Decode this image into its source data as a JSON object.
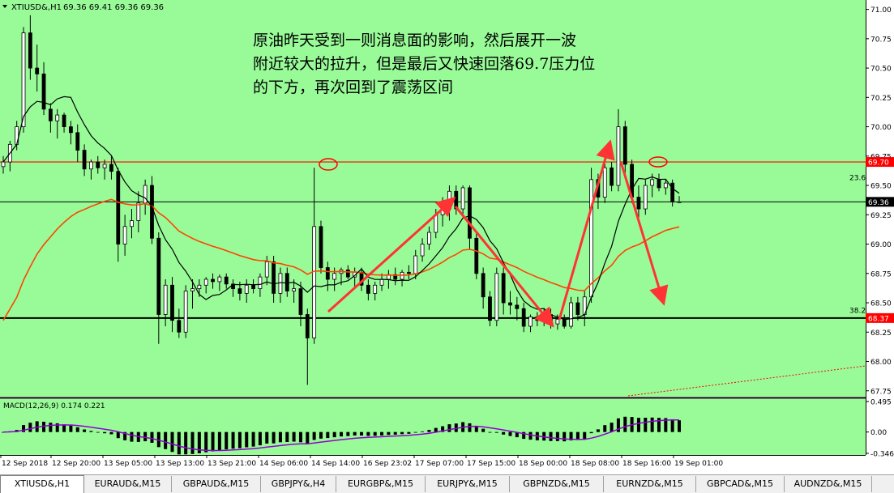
{
  "header": {
    "symbol_label": "XTIUSD&,H1",
    "ohlc_label": "69.36 69.41 69.36 69.36"
  },
  "annotation": {
    "lines": [
      "原油昨天受到一则消息面的影响，然后展开一波",
      "附近较大的拉升，但是最后又快速回落69.7压力位",
      "的下方，再次回到了震荡区间"
    ]
  },
  "colors": {
    "background": "#98fb98",
    "axis_panel": "#ffffff",
    "bull_candle": "#ffffff",
    "bear_candle": "#000000",
    "ma_fast": "#000000",
    "ma_slow": "#ff4500",
    "resistance": "#ff0000",
    "arrow": "#ff3333",
    "macd_signal": "#9400d3"
  },
  "chart_data": {
    "type": "candlestick",
    "symbol": "XTIUSD&",
    "timeframe": "H1",
    "ylim": [
      67.7,
      71.08
    ],
    "y_ticks": [
      "71.00",
      "70.75",
      "70.50",
      "70.25",
      "70.00",
      "69.75",
      "69.50",
      "69.25",
      "69.00",
      "68.75",
      "68.50",
      "68.25",
      "68.00",
      "67.75"
    ],
    "x_tick_labels": [
      "12 Sep 2018",
      "12 Sep 20:00",
      "13 Sep 05:00",
      "13 Sep 13:00",
      "13 Sep 21:00",
      "14 Sep 06:00",
      "14 Sep 14:00",
      "16 Sep 23:02",
      "17 Sep 07:00",
      "17 Sep 15:00",
      "18 Sep 00:00",
      "18 Sep 08:00",
      "18 Sep 16:00",
      "19 Sep 01:00"
    ],
    "horizontal_levels": [
      {
        "price": 69.7,
        "label": "69.70",
        "style": "resistance"
      },
      {
        "price": 69.36,
        "label": "69.36",
        "style": "current"
      },
      {
        "price": 68.37,
        "label": "68.37",
        "style": "support"
      }
    ],
    "fib_labels": [
      {
        "price": 69.53,
        "label": "23.6"
      },
      {
        "price": 68.4,
        "label": "38.2"
      }
    ],
    "candles": [
      {
        "o": 69.66,
        "h": 69.75,
        "l": 69.6,
        "c": 69.7
      },
      {
        "o": 69.7,
        "h": 69.88,
        "l": 69.62,
        "c": 69.85
      },
      {
        "o": 69.85,
        "h": 70.05,
        "l": 69.8,
        "c": 70.0
      },
      {
        "o": 70.0,
        "h": 70.85,
        "l": 69.95,
        "c": 70.8
      },
      {
        "o": 70.8,
        "h": 70.95,
        "l": 70.4,
        "c": 70.5
      },
      {
        "o": 70.5,
        "h": 70.7,
        "l": 70.3,
        "c": 70.45
      },
      {
        "o": 70.45,
        "h": 70.55,
        "l": 70.1,
        "c": 70.15
      },
      {
        "o": 70.15,
        "h": 70.2,
        "l": 69.95,
        "c": 70.05
      },
      {
        "o": 70.05,
        "h": 70.15,
        "l": 69.9,
        "c": 70.1
      },
      {
        "o": 70.1,
        "h": 70.12,
        "l": 69.95,
        "c": 70.0
      },
      {
        "o": 70.0,
        "h": 70.05,
        "l": 69.85,
        "c": 69.95
      },
      {
        "o": 69.95,
        "h": 70.02,
        "l": 69.7,
        "c": 69.8
      },
      {
        "o": 69.8,
        "h": 69.85,
        "l": 69.58,
        "c": 69.64
      },
      {
        "o": 69.64,
        "h": 69.72,
        "l": 69.55,
        "c": 69.7
      },
      {
        "o": 69.7,
        "h": 69.75,
        "l": 69.6,
        "c": 69.65
      },
      {
        "o": 69.65,
        "h": 69.72,
        "l": 69.55,
        "c": 69.68
      },
      {
        "o": 69.68,
        "h": 69.75,
        "l": 69.55,
        "c": 69.62
      },
      {
        "o": 69.62,
        "h": 69.65,
        "l": 68.85,
        "c": 69.0
      },
      {
        "o": 69.0,
        "h": 69.25,
        "l": 68.9,
        "c": 69.15
      },
      {
        "o": 69.15,
        "h": 69.3,
        "l": 69.05,
        "c": 69.2
      },
      {
        "o": 69.2,
        "h": 69.45,
        "l": 69.1,
        "c": 69.35
      },
      {
        "o": 69.35,
        "h": 69.55,
        "l": 69.25,
        "c": 69.5
      },
      {
        "o": 69.5,
        "h": 69.58,
        "l": 69.0,
        "c": 69.05
      },
      {
        "o": 69.05,
        "h": 69.1,
        "l": 68.15,
        "c": 68.4
      },
      {
        "o": 68.4,
        "h": 68.7,
        "l": 68.3,
        "c": 68.65
      },
      {
        "o": 68.65,
        "h": 68.72,
        "l": 68.25,
        "c": 68.35
      },
      {
        "o": 68.35,
        "h": 68.45,
        "l": 68.2,
        "c": 68.25
      },
      {
        "o": 68.25,
        "h": 68.65,
        "l": 68.2,
        "c": 68.6
      },
      {
        "o": 68.6,
        "h": 68.7,
        "l": 68.45,
        "c": 68.62
      },
      {
        "o": 68.62,
        "h": 68.7,
        "l": 68.55,
        "c": 68.65
      },
      {
        "o": 68.65,
        "h": 68.72,
        "l": 68.58,
        "c": 68.7
      },
      {
        "o": 68.7,
        "h": 68.75,
        "l": 68.62,
        "c": 68.68
      },
      {
        "o": 68.68,
        "h": 68.74,
        "l": 68.6,
        "c": 68.72
      },
      {
        "o": 68.72,
        "h": 68.75,
        "l": 68.62,
        "c": 68.66
      },
      {
        "o": 68.66,
        "h": 68.7,
        "l": 68.55,
        "c": 68.62
      },
      {
        "o": 68.62,
        "h": 68.68,
        "l": 68.52,
        "c": 68.58
      },
      {
        "o": 68.58,
        "h": 68.7,
        "l": 68.5,
        "c": 68.65
      },
      {
        "o": 68.65,
        "h": 68.7,
        "l": 68.58,
        "c": 68.62
      },
      {
        "o": 68.62,
        "h": 68.75,
        "l": 68.55,
        "c": 68.72
      },
      {
        "o": 68.72,
        "h": 68.9,
        "l": 68.65,
        "c": 68.85
      },
      {
        "o": 68.85,
        "h": 68.9,
        "l": 68.5,
        "c": 68.58
      },
      {
        "o": 68.58,
        "h": 68.8,
        "l": 68.5,
        "c": 68.75
      },
      {
        "o": 68.75,
        "h": 68.8,
        "l": 68.55,
        "c": 68.6
      },
      {
        "o": 68.6,
        "h": 68.7,
        "l": 68.5,
        "c": 68.62
      },
      {
        "o": 68.62,
        "h": 68.68,
        "l": 68.3,
        "c": 68.4
      },
      {
        "o": 68.4,
        "h": 68.45,
        "l": 67.8,
        "c": 68.2
      },
      {
        "o": 68.2,
        "h": 69.65,
        "l": 68.15,
        "c": 69.15
      },
      {
        "o": 69.15,
        "h": 69.2,
        "l": 68.75,
        "c": 68.8
      },
      {
        "o": 68.8,
        "h": 68.85,
        "l": 68.6,
        "c": 68.7
      },
      {
        "o": 68.7,
        "h": 68.8,
        "l": 68.6,
        "c": 68.75
      },
      {
        "o": 68.75,
        "h": 68.8,
        "l": 68.65,
        "c": 68.78
      },
      {
        "o": 68.78,
        "h": 68.82,
        "l": 68.7,
        "c": 68.72
      },
      {
        "o": 68.72,
        "h": 68.8,
        "l": 68.62,
        "c": 68.76
      },
      {
        "o": 68.76,
        "h": 68.8,
        "l": 68.6,
        "c": 68.65
      },
      {
        "o": 68.65,
        "h": 68.7,
        "l": 68.52,
        "c": 68.58
      },
      {
        "o": 68.58,
        "h": 68.68,
        "l": 68.52,
        "c": 68.65
      },
      {
        "o": 68.65,
        "h": 68.75,
        "l": 68.6,
        "c": 68.7
      },
      {
        "o": 68.7,
        "h": 68.78,
        "l": 68.62,
        "c": 68.74
      },
      {
        "o": 68.74,
        "h": 68.8,
        "l": 68.65,
        "c": 68.7
      },
      {
        "o": 68.7,
        "h": 68.78,
        "l": 68.64,
        "c": 68.76
      },
      {
        "o": 68.76,
        "h": 68.82,
        "l": 68.7,
        "c": 68.75
      },
      {
        "o": 68.75,
        "h": 68.95,
        "l": 68.7,
        "c": 68.9
      },
      {
        "o": 68.9,
        "h": 69.05,
        "l": 68.85,
        "c": 69.0
      },
      {
        "o": 69.0,
        "h": 69.15,
        "l": 68.95,
        "c": 69.1
      },
      {
        "o": 69.1,
        "h": 69.3,
        "l": 69.05,
        "c": 69.25
      },
      {
        "o": 69.25,
        "h": 69.4,
        "l": 69.15,
        "c": 69.3
      },
      {
        "o": 69.3,
        "h": 69.5,
        "l": 69.2,
        "c": 69.45
      },
      {
        "o": 69.45,
        "h": 69.5,
        "l": 69.25,
        "c": 69.3
      },
      {
        "o": 69.3,
        "h": 69.5,
        "l": 69.25,
        "c": 69.48
      },
      {
        "o": 69.48,
        "h": 69.5,
        "l": 68.95,
        "c": 69.05
      },
      {
        "o": 69.05,
        "h": 69.1,
        "l": 68.7,
        "c": 68.75
      },
      {
        "o": 68.75,
        "h": 68.8,
        "l": 68.45,
        "c": 68.55
      },
      {
        "o": 68.55,
        "h": 68.6,
        "l": 68.3,
        "c": 68.35
      },
      {
        "o": 68.35,
        "h": 68.8,
        "l": 68.3,
        "c": 68.75
      },
      {
        "o": 68.75,
        "h": 68.8,
        "l": 68.4,
        "c": 68.5
      },
      {
        "o": 68.5,
        "h": 68.6,
        "l": 68.4,
        "c": 68.48
      },
      {
        "o": 68.48,
        "h": 68.55,
        "l": 68.35,
        "c": 68.45
      },
      {
        "o": 68.45,
        "h": 68.5,
        "l": 68.25,
        "c": 68.3
      },
      {
        "o": 68.3,
        "h": 68.4,
        "l": 68.25,
        "c": 68.38
      },
      {
        "o": 68.38,
        "h": 68.42,
        "l": 68.3,
        "c": 68.35
      },
      {
        "o": 68.35,
        "h": 68.45,
        "l": 68.3,
        "c": 68.4
      },
      {
        "o": 68.4,
        "h": 68.45,
        "l": 68.28,
        "c": 68.32
      },
      {
        "o": 68.32,
        "h": 68.4,
        "l": 68.27,
        "c": 68.36
      },
      {
        "o": 68.36,
        "h": 68.4,
        "l": 68.28,
        "c": 68.3
      },
      {
        "o": 68.3,
        "h": 68.55,
        "l": 68.28,
        "c": 68.5
      },
      {
        "o": 68.5,
        "h": 68.55,
        "l": 68.35,
        "c": 68.4
      },
      {
        "o": 68.4,
        "h": 68.6,
        "l": 68.3,
        "c": 68.55
      },
      {
        "o": 68.55,
        "h": 69.65,
        "l": 68.5,
        "c": 69.55
      },
      {
        "o": 69.55,
        "h": 69.6,
        "l": 69.3,
        "c": 69.4
      },
      {
        "o": 69.4,
        "h": 69.7,
        "l": 69.35,
        "c": 69.65
      },
      {
        "o": 69.65,
        "h": 69.7,
        "l": 69.45,
        "c": 69.5
      },
      {
        "o": 69.5,
        "h": 70.15,
        "l": 69.45,
        "c": 70.0
      },
      {
        "o": 70.0,
        "h": 70.05,
        "l": 69.6,
        "c": 69.68
      },
      {
        "o": 69.68,
        "h": 69.72,
        "l": 69.35,
        "c": 69.4
      },
      {
        "o": 69.4,
        "h": 69.5,
        "l": 69.22,
        "c": 69.3
      },
      {
        "o": 69.3,
        "h": 69.55,
        "l": 69.25,
        "c": 69.5
      },
      {
        "o": 69.5,
        "h": 69.6,
        "l": 69.4,
        "c": 69.55
      },
      {
        "o": 69.55,
        "h": 69.6,
        "l": 69.45,
        "c": 69.48
      },
      {
        "o": 69.48,
        "h": 69.55,
        "l": 69.42,
        "c": 69.52
      },
      {
        "o": 69.52,
        "h": 69.55,
        "l": 69.32,
        "c": 69.36
      },
      {
        "o": 69.36,
        "h": 69.41,
        "l": 69.36,
        "c": 69.36
      }
    ]
  },
  "indicator": {
    "label": "MACD(12,26,9) 0.174 0.221",
    "y_ticks": [
      "0.495",
      "0.00",
      "-0.346"
    ],
    "ylim": [
      -0.346,
      0.495
    ]
  },
  "tabs": [
    {
      "label": "XTIUSD&,H1",
      "active": true
    },
    {
      "label": "EURAUD&,M15",
      "active": false
    },
    {
      "label": "GBPAUD&,M15",
      "active": false
    },
    {
      "label": "GBPJPY&,H4",
      "active": false
    },
    {
      "label": "EURGBP&,M15",
      "active": false
    },
    {
      "label": "EURJPY&,M15",
      "active": false
    },
    {
      "label": "GBPNZD&,M15",
      "active": false
    },
    {
      "label": "EURNZD&,M15",
      "active": false
    },
    {
      "label": "GBPCAD&,M15",
      "active": false
    },
    {
      "label": "AUDNZD&,M15",
      "active": false
    }
  ]
}
